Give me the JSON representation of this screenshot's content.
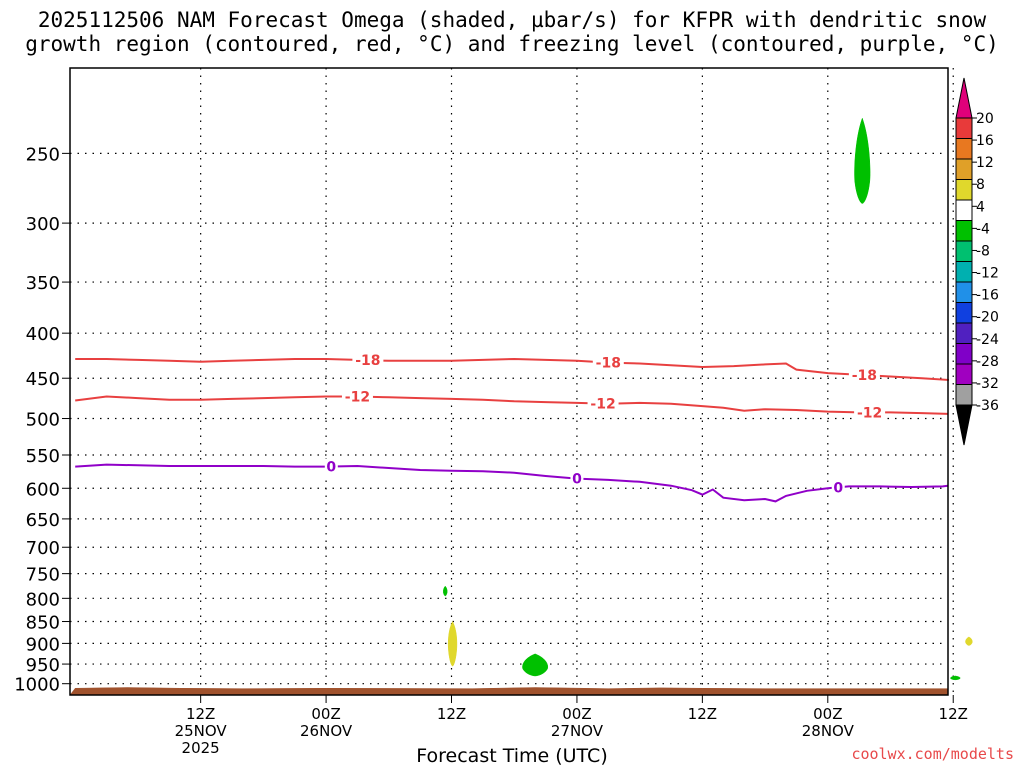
{
  "title": {
    "line1": "2025112506 NAM Forecast Omega (shaded, µbar/s) for KFPR with dendritic snow",
    "line2": "growth region (contoured, red, °C) and freezing level (contoured, purple, °C)"
  },
  "credit": "coolwx.com/modelts",
  "chart_data": {
    "type": "time-height",
    "xlabel": "Forecast Time (UTC)",
    "x_ticks": [
      {
        "hour": 30,
        "lines": [
          "12Z",
          "25NOV",
          "2025"
        ]
      },
      {
        "hour": 42,
        "lines": [
          "00Z",
          "26NOV"
        ]
      },
      {
        "hour": 54,
        "lines": [
          "12Z"
        ]
      },
      {
        "hour": 66,
        "lines": [
          "00Z",
          "27NOV"
        ]
      },
      {
        "hour": 78,
        "lines": [
          "12Z"
        ]
      },
      {
        "hour": 90,
        "lines": [
          "00Z",
          "28NOV"
        ]
      },
      {
        "hour": 102,
        "lines": [
          "12Z"
        ]
      }
    ],
    "x_range_hours": [
      17.5,
      101.5
    ],
    "ylabel": "",
    "y_scale": "log",
    "y_range_hpa": [
      1030,
      200
    ],
    "y_ticks": [
      250,
      300,
      350,
      400,
      450,
      500,
      550,
      600,
      650,
      700,
      750,
      800,
      850,
      900,
      950,
      1000
    ],
    "contours": [
      {
        "value": -18,
        "label": "-18",
        "color": "#e84040",
        "points": [
          [
            18,
            428
          ],
          [
            21,
            428
          ],
          [
            24,
            429
          ],
          [
            27,
            430
          ],
          [
            30,
            431
          ],
          [
            33,
            430
          ],
          [
            36,
            429
          ],
          [
            39,
            428
          ],
          [
            42,
            428
          ],
          [
            45,
            429
          ],
          [
            48,
            430
          ],
          [
            51,
            430
          ],
          [
            54,
            430
          ],
          [
            57,
            429
          ],
          [
            60,
            428
          ],
          [
            63,
            429
          ],
          [
            66,
            430
          ],
          [
            69,
            432
          ],
          [
            72,
            433
          ],
          [
            75,
            435
          ],
          [
            78,
            437
          ],
          [
            81,
            436
          ],
          [
            84,
            434
          ],
          [
            86,
            433
          ],
          [
            87,
            440
          ],
          [
            90,
            444
          ],
          [
            93,
            446
          ],
          [
            96,
            448
          ],
          [
            99,
            450
          ],
          [
            102,
            452
          ],
          [
            105,
            453
          ]
        ],
        "label_hours": [
          46,
          69,
          93.5
        ]
      },
      {
        "value": -12,
        "label": "-12",
        "color": "#e84040",
        "points": [
          [
            18,
            477
          ],
          [
            21,
            472
          ],
          [
            24,
            474
          ],
          [
            27,
            476
          ],
          [
            30,
            476
          ],
          [
            33,
            475
          ],
          [
            36,
            474
          ],
          [
            39,
            473
          ],
          [
            42,
            472
          ],
          [
            45,
            472
          ],
          [
            48,
            473
          ],
          [
            51,
            474
          ],
          [
            54,
            475
          ],
          [
            57,
            476
          ],
          [
            60,
            478
          ],
          [
            63,
            479
          ],
          [
            66,
            480
          ],
          [
            69,
            481
          ],
          [
            72,
            480
          ],
          [
            75,
            481
          ],
          [
            78,
            484
          ],
          [
            80,
            486
          ],
          [
            82,
            490
          ],
          [
            84,
            488
          ],
          [
            87,
            489
          ],
          [
            90,
            491
          ],
          [
            93,
            492
          ],
          [
            96,
            492
          ],
          [
            99,
            493
          ],
          [
            102,
            494
          ],
          [
            105,
            494
          ]
        ],
        "label_hours": [
          45,
          68.5,
          94
        ]
      },
      {
        "value": 0,
        "label": "0",
        "color": "#9000c8",
        "points": [
          [
            18,
            567
          ],
          [
            21,
            564
          ],
          [
            24,
            565
          ],
          [
            27,
            566
          ],
          [
            30,
            566
          ],
          [
            33,
            566
          ],
          [
            36,
            566
          ],
          [
            39,
            567
          ],
          [
            42,
            567
          ],
          [
            45,
            566
          ],
          [
            48,
            569
          ],
          [
            51,
            572
          ],
          [
            54,
            573
          ],
          [
            57,
            574
          ],
          [
            60,
            576
          ],
          [
            63,
            581
          ],
          [
            66,
            585
          ],
          [
            69,
            587
          ],
          [
            72,
            590
          ],
          [
            75,
            596
          ],
          [
            77,
            603
          ],
          [
            78,
            610
          ],
          [
            79,
            602
          ],
          [
            80,
            615
          ],
          [
            82,
            619
          ],
          [
            84,
            617
          ],
          [
            85,
            621
          ],
          [
            86,
            612
          ],
          [
            88,
            604
          ],
          [
            90,
            600
          ],
          [
            92,
            597
          ],
          [
            95,
            597
          ],
          [
            98,
            598
          ],
          [
            101,
            597
          ],
          [
            105,
            596
          ]
        ],
        "label_hours": [
          42.5,
          66,
          91
        ]
      }
    ],
    "omega_regions": [
      {
        "category": "-8 to -4",
        "color": "#00c000",
        "center": [
          93.3,
          262
        ],
        "half_width_hours": 0.8,
        "top_hpa": 228,
        "bottom_hpa": 285
      },
      {
        "category": "-8 to -4",
        "color": "#00c000",
        "center": [
          53.4,
          785
        ],
        "half_width_hours": 0.2,
        "top_hpa": 775,
        "bottom_hpa": 795
      },
      {
        "category": "4 to 8",
        "color": "#e0d82c",
        "center": [
          54.1,
          895
        ],
        "half_width_hours": 0.45,
        "top_hpa": 850,
        "bottom_hpa": 955
      },
      {
        "category": "-8 to -4",
        "color": "#00c000",
        "center": [
          62.0,
          955
        ],
        "half_width_hours": 1.3,
        "top_hpa": 925,
        "bottom_hpa": 980
      },
      {
        "category": "4 to 8",
        "color": "#e0d82c",
        "center": [
          103.5,
          895
        ],
        "half_width_hours": 0.35,
        "top_hpa": 885,
        "bottom_hpa": 905
      },
      {
        "category": "-8 to -4",
        "color": "#00c000",
        "center": [
          102.2,
          985
        ],
        "half_width_hours": 0.5,
        "top_hpa": 980,
        "bottom_hpa": 990
      }
    ],
    "ground": {
      "color": "#a0522d",
      "top_hpa": 1012,
      "bump_hours": [
        [
          18,
          1012
        ],
        [
          23,
          1010
        ],
        [
          28,
          1012
        ],
        [
          34,
          1013
        ],
        [
          42,
          1012
        ],
        [
          56,
          1013
        ],
        [
          62,
          1010
        ],
        [
          69,
          1013
        ],
        [
          74,
          1011
        ],
        [
          78,
          1012
        ],
        [
          84,
          1013
        ],
        [
          105,
          1013
        ]
      ]
    },
    "colorbar": {
      "colors": [
        "#e0007a",
        "#e83a3a",
        "#e87820",
        "#e0a028",
        "#e0d82c",
        "#ffffff",
        "#00c000",
        "#00c070",
        "#00b0b0",
        "#2090e8",
        "#1040e0",
        "#5020c0",
        "#8000c8",
        "#a000c0",
        "#a0a0a0",
        "#000000"
      ],
      "labels": [
        "20",
        "16",
        "12",
        "8",
        "4",
        "-4",
        "-8",
        "-12",
        "-16",
        "-20",
        "-24",
        "-28",
        "-32",
        "-36"
      ]
    }
  }
}
